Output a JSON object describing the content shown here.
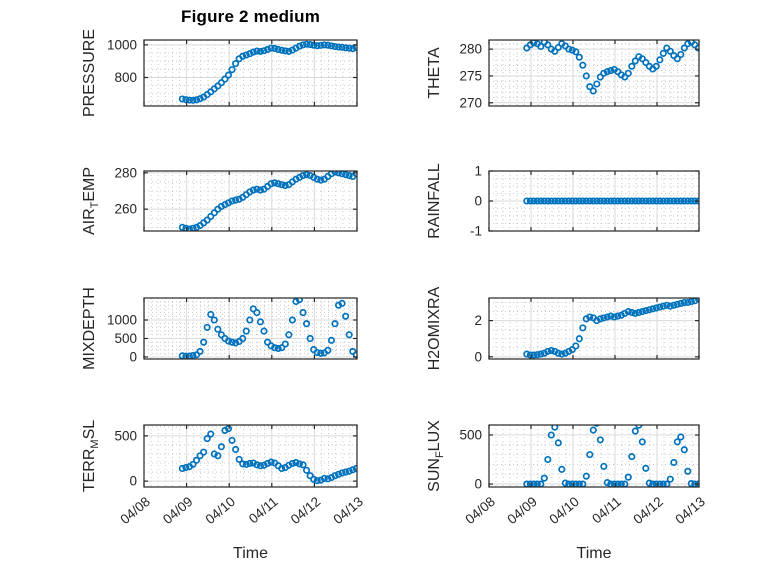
{
  "chart_data": {
    "type": "scatter",
    "title": "Figure 2 medium",
    "xlabel": "Time",
    "legend": null,
    "grid": "major-and-minor",
    "style": {
      "marker": "open-circle",
      "marker_color": "#0072BD",
      "text_color": "#262626",
      "axes_color": "#262626",
      "grid_color": "#d9d9d9",
      "minor_grid_color": "#bdbdbd"
    },
    "x": {
      "lim": [
        0,
        5
      ],
      "ticks": [
        {
          "v": 0,
          "l": "04/08"
        },
        {
          "v": 1,
          "l": "04/09"
        },
        {
          "v": 2,
          "l": "04/10"
        },
        {
          "v": 3,
          "l": "04/11"
        },
        {
          "v": 4,
          "l": "04/12"
        },
        {
          "v": 5,
          "l": "04/13"
        }
      ],
      "minor_step_days": 0.1666667,
      "t_start": 0.9,
      "t_step": 0.0833333,
      "units": "days since 04/08"
    },
    "subplots": [
      {
        "name": "PRESSURE",
        "ylabel_parts": [
          {
            "t": "PRESSURE",
            "sub": false
          }
        ],
        "ylim": [
          625,
          1030
        ],
        "yticks": [
          {
            "v": 800,
            "l": "800"
          },
          {
            "v": 1000,
            "l": "1000"
          }
        ],
        "minor_y_step": 50,
        "values": [
          668,
          664,
          661,
          660,
          663,
          670,
          680,
          695,
          712,
          730,
          748,
          768,
          790,
          815,
          848,
          885,
          915,
          930,
          938,
          946,
          956,
          962,
          960,
          964,
          972,
          980,
          978,
          972,
          967,
          963,
          960,
          968,
          980,
          992,
          1000,
          1004,
          1002,
          998,
          995,
          997,
          1000,
          998,
          994,
          990,
          987,
          985,
          982,
          980,
          977,
          983
        ]
      },
      {
        "name": "THETA",
        "ylabel_parts": [
          {
            "t": "THETA",
            "sub": false
          }
        ],
        "ylim": [
          269.4,
          281.7
        ],
        "yticks": [
          {
            "v": 270,
            "l": "270"
          },
          {
            "v": 275,
            "l": "275"
          },
          {
            "v": 280,
            "l": "280"
          }
        ],
        "minor_y_step": 1,
        "values": [
          280.2,
          280.8,
          281.2,
          281.0,
          280.5,
          281.3,
          280.8,
          280.0,
          279.6,
          280.3,
          281.0,
          280.6,
          280.0,
          279.8,
          279.5,
          278.5,
          277.0,
          275.0,
          273.0,
          272.2,
          273.5,
          274.8,
          275.5,
          275.8,
          276.0,
          276.2,
          275.8,
          275.2,
          274.8,
          275.5,
          276.8,
          277.8,
          278.6,
          278.2,
          277.5,
          276.8,
          276.3,
          276.8,
          278.0,
          279.2,
          280.2,
          279.6,
          278.8,
          278.2,
          279.0,
          280.2,
          281.0,
          281.3,
          280.8,
          280.2
        ]
      },
      {
        "name": "AIR_TEMP",
        "ylabel_parts": [
          {
            "t": "AIR",
            "sub": false
          },
          {
            "t": "T",
            "sub": true
          },
          {
            "t": "EMP",
            "sub": false
          }
        ],
        "ylim": [
          248,
          281
        ],
        "yticks": [
          {
            "v": 260,
            "l": "260"
          },
          {
            "v": 280,
            "l": "280"
          }
        ],
        "minor_y_step": 5,
        "values": [
          250,
          249.5,
          249,
          249.5,
          250,
          251,
          252.5,
          254,
          256,
          258,
          260,
          261.5,
          262.5,
          263.5,
          264.5,
          265,
          265.5,
          266.5,
          268,
          269.5,
          270.5,
          271,
          270.5,
          271,
          272.5,
          274,
          274.5,
          274,
          273.5,
          273,
          273.5,
          275,
          276.5,
          277.5,
          278.5,
          279,
          278.5,
          277.5,
          276.5,
          276,
          276.5,
          278,
          279.5,
          280.5,
          280,
          279.5,
          279,
          278.5,
          278,
          279.5
        ]
      },
      {
        "name": "RAINFALL",
        "ylabel_parts": [
          {
            "t": "RAINFALL",
            "sub": false
          }
        ],
        "ylim": [
          -1,
          1
        ],
        "yticks": [
          {
            "v": -1,
            "l": "-1"
          },
          {
            "v": 0,
            "l": "0"
          },
          {
            "v": 1,
            "l": "1"
          }
        ],
        "minor_y_step": 0.25,
        "values": [
          0,
          0,
          0,
          0,
          0,
          0,
          0,
          0,
          0,
          0,
          0,
          0,
          0,
          0,
          0,
          0,
          0,
          0,
          0,
          0,
          0,
          0,
          0,
          0,
          0,
          0,
          0,
          0,
          0,
          0,
          0,
          0,
          0,
          0,
          0,
          0,
          0,
          0,
          0,
          0,
          0,
          0,
          0,
          0,
          0,
          0,
          0,
          0,
          0,
          0
        ]
      },
      {
        "name": "MIXDEPTH",
        "ylabel_parts": [
          {
            "t": "MIXDEPTH",
            "sub": false
          }
        ],
        "ylim": [
          -55,
          1595
        ],
        "yticks": [
          {
            "v": 0,
            "l": "0"
          },
          {
            "v": 500,
            "l": "500"
          },
          {
            "v": 1000,
            "l": "1000"
          }
        ],
        "minor_y_step": 100,
        "values": [
          30,
          20,
          25,
          40,
          60,
          150,
          400,
          800,
          1150,
          1000,
          750,
          600,
          500,
          430,
          400,
          380,
          420,
          500,
          700,
          1000,
          1300,
          1200,
          950,
          700,
          400,
          300,
          250,
          230,
          250,
          350,
          600,
          1000,
          1500,
          1550,
          1200,
          900,
          500,
          200,
          120,
          100,
          110,
          180,
          450,
          900,
          1400,
          1450,
          1100,
          600,
          150,
          60
        ]
      },
      {
        "name": "H2OMIXRA",
        "ylabel_parts": [
          {
            "t": "H2OMIXRA",
            "sub": false
          }
        ],
        "ylim": [
          -0.12,
          3.25
        ],
        "yticks": [
          {
            "v": 0,
            "l": "0"
          },
          {
            "v": 2,
            "l": "2"
          }
        ],
        "minor_y_step": 0.5,
        "values": [
          0.15,
          0.1,
          0.1,
          0.12,
          0.15,
          0.2,
          0.3,
          0.35,
          0.3,
          0.2,
          0.15,
          0.2,
          0.3,
          0.4,
          0.6,
          1.0,
          1.6,
          2.1,
          2.2,
          2.15,
          2.0,
          2.1,
          2.15,
          2.2,
          2.25,
          2.2,
          2.25,
          2.3,
          2.4,
          2.5,
          2.45,
          2.4,
          2.45,
          2.5,
          2.55,
          2.6,
          2.65,
          2.7,
          2.75,
          2.8,
          2.85,
          2.8,
          2.85,
          2.9,
          2.95,
          3.0,
          3.0,
          3.05,
          3.1,
          3.2
        ]
      },
      {
        "name": "TERR_MSL",
        "ylabel_parts": [
          {
            "t": "TERR",
            "sub": false
          },
          {
            "t": "M",
            "sub": true
          },
          {
            "t": "SL",
            "sub": false
          }
        ],
        "ylim": [
          -65,
          620
        ],
        "yticks": [
          {
            "v": 0,
            "l": "0"
          },
          {
            "v": 500,
            "l": "500"
          }
        ],
        "minor_y_step": 100,
        "values": [
          140,
          150,
          160,
          185,
          230,
          280,
          320,
          470,
          520,
          300,
          280,
          380,
          560,
          580,
          450,
          350,
          240,
          190,
          185,
          195,
          200,
          180,
          170,
          175,
          195,
          210,
          200,
          170,
          140,
          150,
          175,
          195,
          205,
          190,
          180,
          120,
          60,
          20,
          5,
          10,
          30,
          25,
          40,
          60,
          75,
          90,
          100,
          110,
          125,
          140
        ]
      },
      {
        "name": "SUN_FLUX",
        "ylabel_parts": [
          {
            "t": "SUN",
            "sub": false
          },
          {
            "t": "F",
            "sub": true
          },
          {
            "t": "LUX",
            "sub": false
          }
        ],
        "ylim": [
          -30,
          602
        ],
        "yticks": [
          {
            "v": 0,
            "l": "0"
          },
          {
            "v": 500,
            "l": "500"
          }
        ],
        "minor_y_step": 100,
        "values": [
          0,
          0,
          0,
          0,
          0,
          60,
          250,
          500,
          580,
          420,
          150,
          10,
          0,
          0,
          0,
          0,
          0,
          80,
          300,
          550,
          620,
          450,
          180,
          15,
          0,
          0,
          0,
          0,
          0,
          70,
          280,
          540,
          600,
          430,
          160,
          10,
          0,
          0,
          0,
          0,
          0,
          50,
          220,
          430,
          480,
          350,
          130,
          5,
          0,
          0
        ]
      }
    ]
  }
}
